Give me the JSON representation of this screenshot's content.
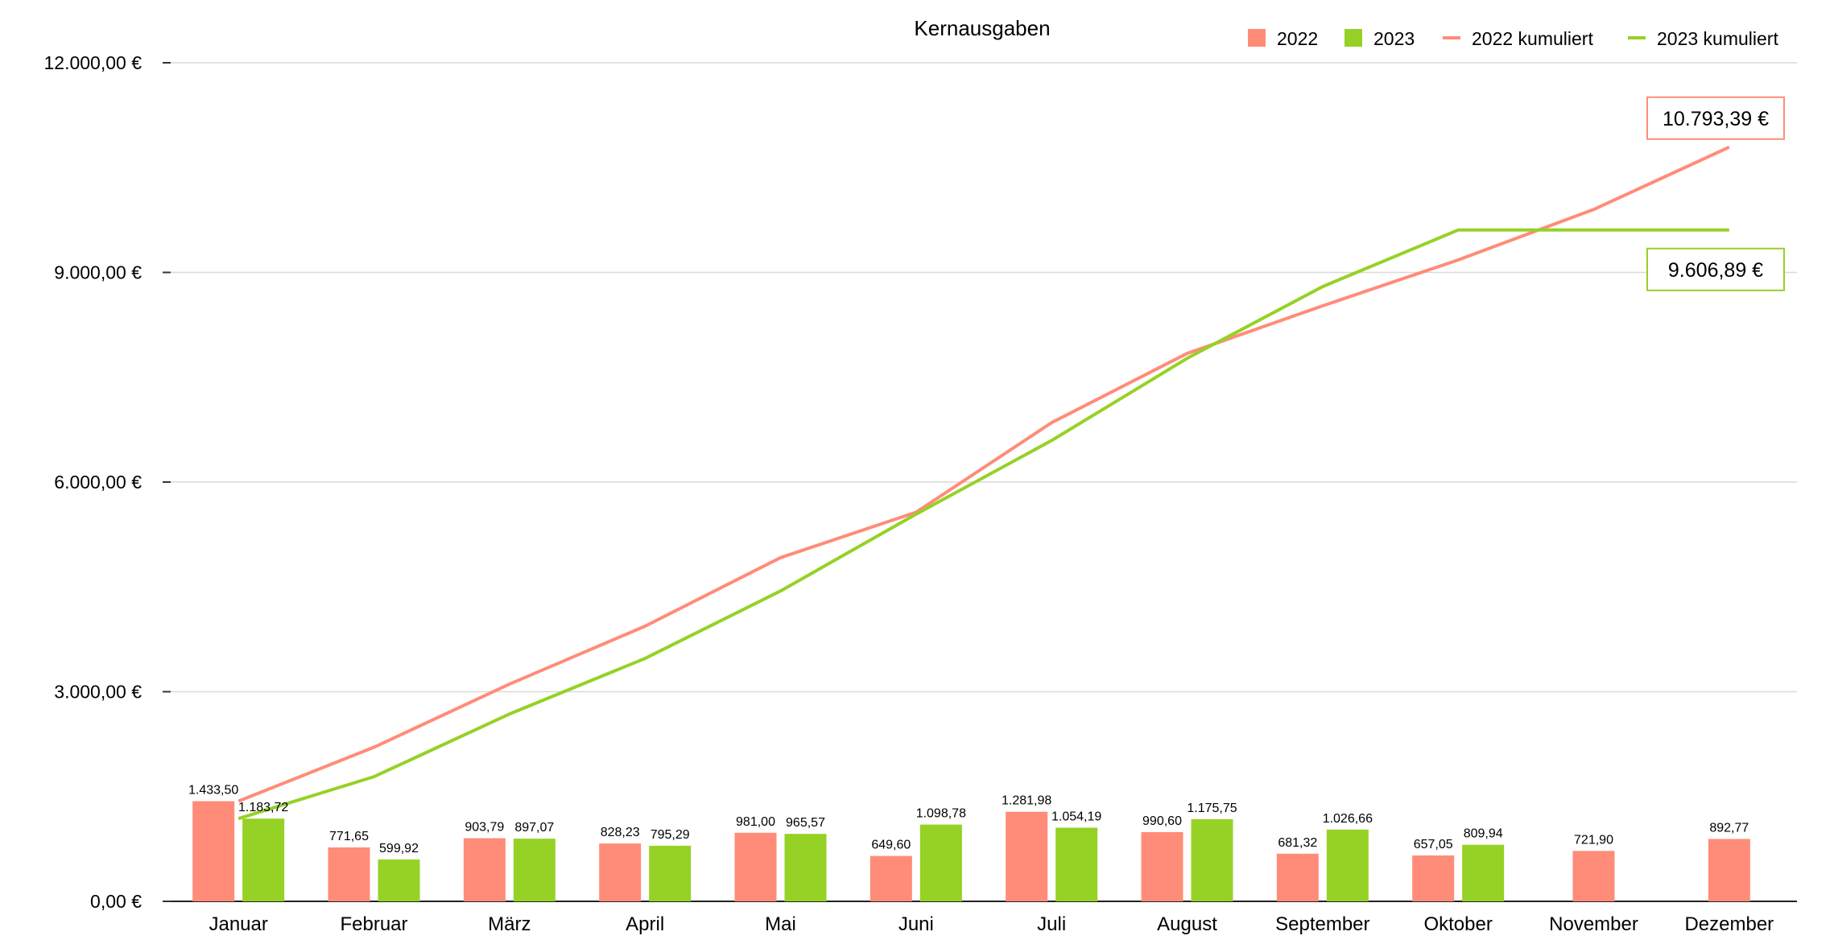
{
  "chart_data": {
    "type": "bar",
    "title": "Kernausgaben",
    "categories": [
      "Januar",
      "Februar",
      "März",
      "April",
      "Mai",
      "Juni",
      "Juli",
      "August",
      "September",
      "Oktober",
      "November",
      "Dezember"
    ],
    "ylim": [
      0,
      12000
    ],
    "yticks": [
      0,
      3000,
      6000,
      9000,
      12000
    ],
    "ytick_labels": [
      "0,00 €",
      "3.000,00 €",
      "6.000,00 €",
      "9.000,00 €",
      "12.000,00 €"
    ],
    "grid": true,
    "legend_position": "top-right",
    "bar_series": [
      {
        "name": "2022",
        "color": "#FF8C78",
        "values": [
          1433.5,
          771.65,
          903.79,
          828.23,
          981.0,
          649.6,
          1281.98,
          990.6,
          681.32,
          657.05,
          721.9,
          892.77
        ],
        "labels": [
          "1.433,50",
          "771,65",
          "903,79",
          "828,23",
          "981,00",
          "649,60",
          "1.281,98",
          "990,60",
          "681,32",
          "657,05",
          "721,90",
          "892,77"
        ]
      },
      {
        "name": "2023",
        "color": "#96D126",
        "values": [
          1183.72,
          599.92,
          897.07,
          795.29,
          965.57,
          1098.78,
          1054.19,
          1175.75,
          1026.66,
          809.94,
          null,
          null
        ],
        "labels": [
          "1.183,72",
          "599,92",
          "897,07",
          "795,29",
          "965,57",
          "1.098,78",
          "1.054,19",
          "1.175,75",
          "1.026,66",
          "809,94",
          "",
          ""
        ]
      }
    ],
    "line_series": [
      {
        "name": "2022 kumuliert",
        "color": "#FF8C78",
        "values": [
          1433.5,
          2205.15,
          3108.94,
          3937.17,
          4918.17,
          5567.77,
          6849.75,
          7840.35,
          8521.67,
          9178.72,
          9900.62,
          10793.39
        ],
        "end_label": "10.793,39 €"
      },
      {
        "name": "2023 kumuliert",
        "color": "#96D126",
        "values": [
          1183.72,
          1783.64,
          2680.71,
          3476.0,
          4441.57,
          5540.35,
          6594.54,
          7770.29,
          8796.95,
          9606.89,
          9606.89,
          9606.89
        ],
        "end_label": "9.606,89 €"
      }
    ]
  }
}
